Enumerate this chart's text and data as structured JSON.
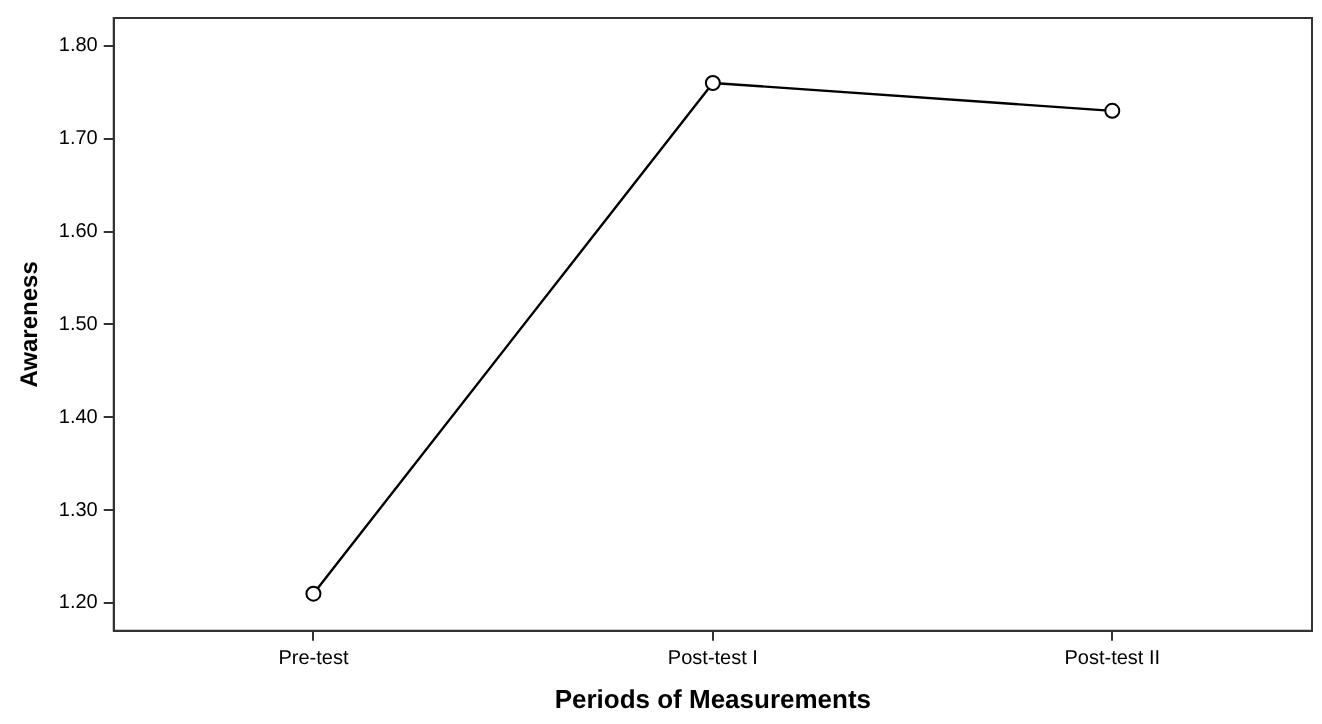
{
  "chart_data": {
    "type": "line",
    "xlabel": "Periods of Measurements",
    "ylabel": "Awareness",
    "categories": [
      "Pre-test",
      "Post-test I",
      "Post-test II"
    ],
    "series": [
      {
        "color": "#000000",
        "values": [
          1.21,
          1.76,
          1.73
        ]
      }
    ],
    "ylim": [
      1.17,
      1.83
    ],
    "yticks": [
      {
        "value": 1.2,
        "label": "1.20"
      },
      {
        "value": 1.3,
        "label": "1.30"
      },
      {
        "value": 1.4,
        "label": "1.40"
      },
      {
        "value": 1.5,
        "label": "1.50"
      },
      {
        "value": 1.6,
        "label": "1.60"
      },
      {
        "value": 1.7,
        "label": "1.70"
      },
      {
        "value": 1.8,
        "label": "1.80"
      }
    ],
    "grid": false,
    "legend": false,
    "marker": "circle",
    "line_style": "solid"
  }
}
